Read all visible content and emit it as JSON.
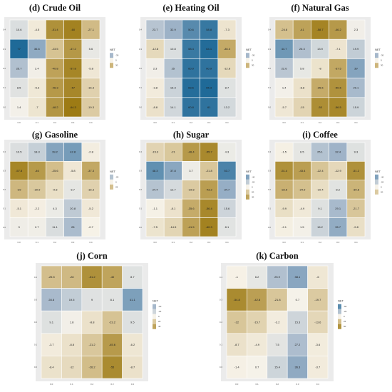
{
  "colors": {
    "panel_bg": "#ebebeb",
    "grid": "#ffffff",
    "neg_strong": "#9c7a12",
    "neg_mid": "#c9b072",
    "neutral": "#f7f3ea",
    "pos_mid": "#9fb3c8",
    "pos_strong": "#1f6a98"
  },
  "legend_title": "NET",
  "chart_data": [
    {
      "type": "heatmap",
      "title": "(d) Crude Oil",
      "x_ticks": [
        "0.0",
        "0.1",
        "0.2",
        "0.3",
        "0.4"
      ],
      "y_ticks": [
        "0.4",
        "0.3",
        "0.2",
        "0.1",
        "0.0"
      ],
      "values": [
        [
          10.6,
          -4.5,
          -51.4,
          -60,
          -27.1
        ],
        [
          77,
          36.6,
          -23.5,
          -47.2,
          5.6
        ],
        [
          25.7,
          2.4,
          -40.8,
          -57.8,
          -5.8
        ],
        [
          8.5,
          -5.3,
          -46.3,
          -57,
          -16.3
        ],
        [
          1.4,
          -7,
          -48.2,
          -64.3,
          -19.3
        ]
      ],
      "legend_ticks": [
        "-30",
        "0",
        "30"
      ]
    },
    {
      "type": "heatmap",
      "title": "(e) Heating Oil",
      "x_ticks": [
        "0.0",
        "0.1",
        "0.2",
        "0.3",
        "0.4"
      ],
      "y_ticks": [
        "0.4",
        "0.3",
        "0.2",
        "0.1",
        "0.0"
      ],
      "values": [
        [
          23.7,
          32.9,
          50.6,
          58.8,
          -7.3
        ],
        [
          -12.8,
          10.8,
          58.4,
          64.1,
          -36.3
        ],
        [
          2.3,
          25,
          60.9,
          60.9,
          -12.8
        ],
        [
          -3.8,
          16.3,
          63.6,
          65.3,
          8.7
        ],
        [
          -8.8,
          14.1,
          60.8,
          61,
          13.2
        ]
      ],
      "legend_ticks": [
        "-30",
        "0",
        "30"
      ]
    },
    {
      "type": "heatmap",
      "title": "(f) Natural Gas",
      "x_ticks": [
        "0.0",
        "0.1",
        "0.2",
        "0.3",
        "0.4"
      ],
      "y_ticks": [
        "0.4",
        "0.3",
        "0.2",
        "0.1",
        "0.0"
      ],
      "values": [
        [
          -24.8,
          -41,
          -58.7,
          -46.2,
          2.3
        ],
        [
          44.7,
          26.3,
          13.9,
          -7.1,
          19.9
        ],
        [
          22.6,
          5.8,
          -8,
          -37.5,
          39
        ],
        [
          1.4,
          -8.8,
          -35.6,
          -50.6,
          29.1
        ],
        [
          -5.7,
          -15,
          -53,
          -56.5,
          15.9
        ]
      ],
      "legend_ticks": [
        "-30",
        "0",
        "30"
      ]
    },
    {
      "type": "heatmap",
      "title": "(g) Gasoline",
      "x_ticks": [
        "0.0",
        "0.1",
        "0.2",
        "0.3",
        "0.4"
      ],
      "y_ticks": [
        "0.4",
        "0.3",
        "0.2",
        "0.1",
        "0.0"
      ],
      "values": [
        [
          10.5,
          18.3,
          39.2,
          42.8,
          -2.8
        ],
        [
          -57.8,
          -46,
          -25.6,
          -5.8,
          -37.3
        ],
        [
          -29,
          -20.9,
          -9.8,
          6.7,
          -16.3
        ],
        [
          -5.1,
          -2.2,
          4.3,
          20.8,
          -5.2
        ],
        [
          3,
          2.7,
          11.1,
          28,
          -0.7
        ]
      ],
      "legend_ticks": [
        "-25",
        "0",
        "25"
      ]
    },
    {
      "type": "heatmap",
      "title": "(h) Sugar",
      "x_ticks": [
        "0.0",
        "0.1",
        "0.2",
        "0.3",
        "0.4"
      ],
      "y_ticks": [
        "0.4",
        "0.3",
        "0.2",
        "0.1",
        "0.0"
      ],
      "values": [
        [
          -15.3,
          -21,
          -46.4,
          -55.7,
          4.3
        ],
        [
          48.3,
          37.8,
          3.7,
          -21.8,
          53.7
        ],
        [
          24.4,
          12.7,
          -19.8,
          -43.2,
          34.7
        ],
        [
          -1.1,
          -8.1,
          -35.6,
          -56.4,
          15.6
        ],
        [
          -7.5,
          -14.5,
          -41.5,
          -60.3,
          8.1
        ]
      ],
      "legend_ticks": [
        "-40",
        "-20",
        "0",
        "20",
        "40"
      ]
    },
    {
      "type": "heatmap",
      "title": "(i) Coffee",
      "x_ticks": [
        "0.0",
        "0.1",
        "0.2",
        "0.3",
        "0.4"
      ],
      "y_ticks": [
        "0.4",
        "0.3",
        "0.2",
        "0.1",
        "0.0"
      ],
      "values": [
        [
          -1.5,
          6.5,
          25.1,
          32.4,
          9.3
        ],
        [
          -51.4,
          -43.4,
          -22.4,
          -12.9,
          -51.2
        ],
        [
          -32.5,
          -24.9,
          -10.4,
          8.2,
          -30.8
        ],
        [
          -9.9,
          -4.9,
          9.1,
          29.1,
          -21.7
        ],
        [
          -2.1,
          1.5,
          16.2,
          35.7,
          -9.8
        ]
      ],
      "legend_ticks": [
        "-40",
        "-20",
        "0",
        "20"
      ]
    },
    {
      "type": "heatmap",
      "title": "(j) Corn",
      "x_ticks": [
        "0.0",
        "0.1",
        "0.2",
        "0.3",
        "0.4"
      ],
      "y_ticks": [
        "0.4",
        "0.3",
        "0.2",
        "0.1",
        "0.0"
      ],
      "values": [
        [
          -25.5,
          -28,
          -51.2,
          -40,
          8.7
        ],
        [
          28.8,
          19.5,
          9,
          8.1,
          41.1
        ],
        [
          9.1,
          1.8,
          -8.8,
          -23.2,
          9.5
        ],
        [
          -3.7,
          -8.8,
          -21.2,
          -45.6,
          -6.2
        ],
        [
          -8.4,
          -12,
          -26.2,
          -55,
          -8.7
        ]
      ],
      "legend_ticks": [
        "-30",
        "-15",
        "0",
        "20",
        "40"
      ]
    },
    {
      "type": "heatmap",
      "title": "(k) Carbon",
      "x_ticks": [
        "0.0",
        "0.1",
        "0.2",
        "0.3",
        "0.4"
      ],
      "y_ticks": [
        "0.4",
        "0.3",
        "0.2",
        "0.1",
        "0.0"
      ],
      "values": [
        [
          -1,
          6.2,
          25.9,
          38.1,
          -6
        ],
        [
          -54.8,
          -42.8,
          -21.8,
          0.7,
          -19.7
        ],
        [
          -22,
          -15.7,
          -3.2,
          15.3,
          -13.6
        ],
        [
          -8.7,
          -4.9,
          7.5,
          27.2,
          -3.6
        ],
        [
          -1.4,
          0.7,
          15.4,
          36.3,
          -3.7
        ]
      ],
      "legend_ticks": [
        "-50",
        "-25",
        "0",
        "25",
        "50"
      ]
    }
  ]
}
